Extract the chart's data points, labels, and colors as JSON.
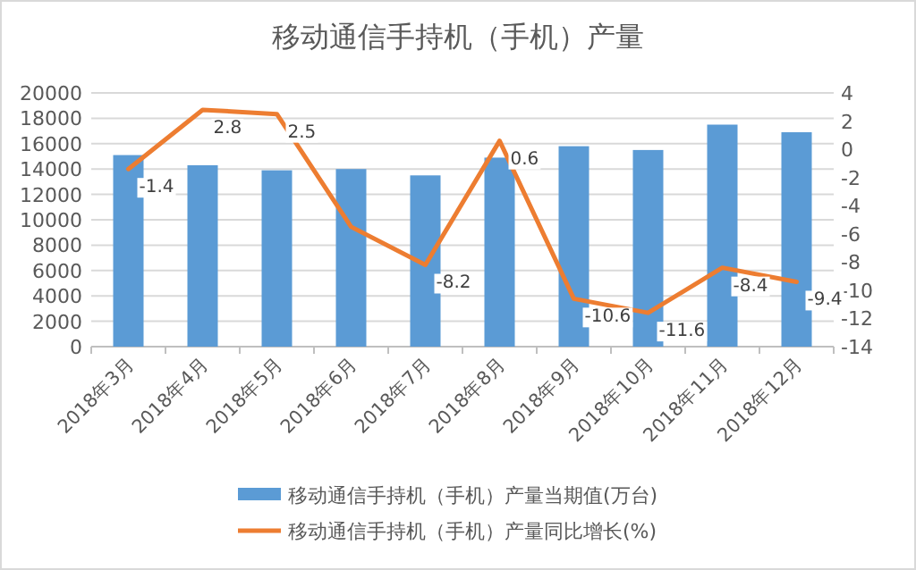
{
  "chart_data": {
    "type": "bar",
    "title": "移动通信手持机（手机）产量",
    "categories": [
      "2018年3月",
      "2018年4月",
      "2018年5月",
      "2018年6月",
      "2018年7月",
      "2018年8月",
      "2018年9月",
      "2018年10月",
      "2018年11月",
      "2018年12月"
    ],
    "series": [
      {
        "name": "移动通信手持机（手机）产量当期值(万台)",
        "color": "#5b9bd5",
        "values": [
          15100,
          14300,
          13900,
          14000,
          13500,
          14900,
          15800,
          15500,
          17500,
          16900
        ]
      },
      {
        "name": "移动通信手持机（手机）产量同比增长(%)",
        "type": "line",
        "axis": "y2",
        "color": "#ed7d31",
        "values": [
          -1.4,
          2.8,
          2.5,
          -5.5,
          -8.2,
          0.6,
          -10.6,
          -11.6,
          -8.4,
          -9.4
        ],
        "value_labels": [
          "-1.4",
          "2.8",
          "2.5",
          null,
          "-8.2",
          "0.6",
          "-10.6",
          "-11.6",
          "-8.4",
          "-9.4"
        ]
      }
    ],
    "ylim": [
      0,
      20000
    ],
    "yticks": [
      0,
      2000,
      4000,
      6000,
      8000,
      10000,
      12000,
      14000,
      16000,
      18000,
      20000
    ],
    "y2lim": [
      -14,
      4
    ],
    "y2ticks": [
      -14,
      -12,
      -10,
      -8,
      -6,
      -4,
      -2,
      0,
      2,
      4
    ],
    "grid": "y",
    "legend": "bottom"
  }
}
